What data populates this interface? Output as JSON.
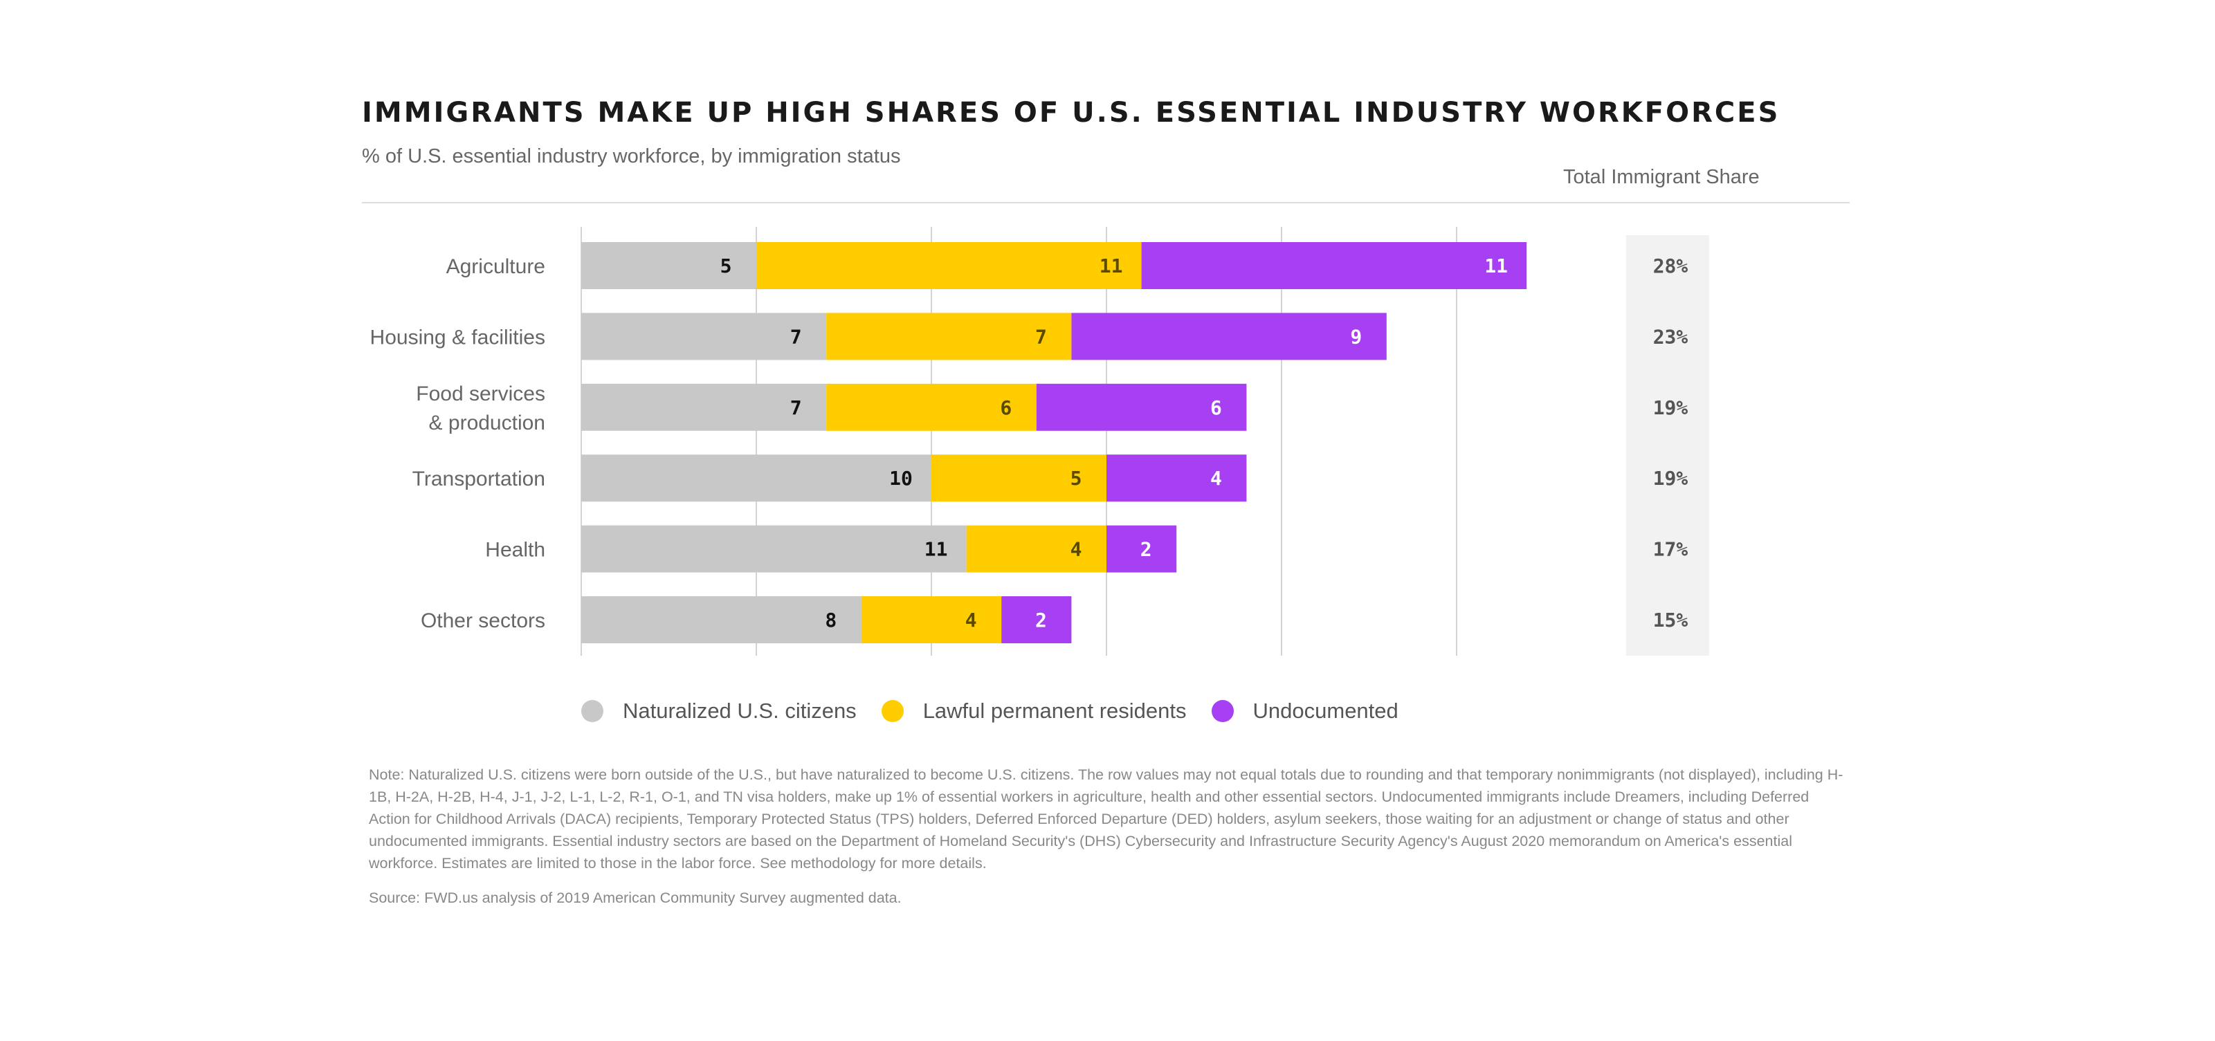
{
  "chart_data": {
    "type": "bar",
    "stacked": true,
    "orientation": "horizontal",
    "title": "IMMIGRANTS MAKE UP HIGH SHARES OF U.S. ESSENTIAL INDUSTRY WORKFORCES",
    "subtitle": "% of U.S. essential industry workforce, by immigration status",
    "categories": [
      [
        "Agriculture"
      ],
      [
        "Housing & facilities"
      ],
      [
        "Food services",
        "& production"
      ],
      [
        "Transportation"
      ],
      [
        "Health"
      ],
      [
        "Other sectors"
      ]
    ],
    "series": [
      {
        "name": "Naturalized U.S. citizens",
        "color": "#c8c8c8",
        "label_color": "#111111",
        "values": [
          5,
          7,
          7,
          10,
          11,
          8
        ]
      },
      {
        "name": "Lawful permanent residents",
        "color": "#ffcc00",
        "label_color": "#5a4a00",
        "values": [
          11,
          7,
          6,
          5,
          4,
          4
        ]
      },
      {
        "name": "Undocumented",
        "color": "#a73ff2",
        "label_color": "#ffffff",
        "values": [
          11,
          9,
          6,
          4,
          2,
          2
        ]
      }
    ],
    "xlim": [
      0,
      35
    ],
    "gridlines": [
      0,
      5,
      10,
      15,
      20,
      25
    ],
    "grid": true,
    "legend_position": "bottom",
    "total_share_header": "Total Immigrant Share",
    "total_share": [
      "28%",
      "23%",
      "19%",
      "19%",
      "17%",
      "15%"
    ]
  },
  "note": "Note: Naturalized U.S. citizens were born outside of the U.S., but have naturalized to become U.S. citizens. The row values may not equal totals due to rounding and that temporary nonimmigrants (not displayed), including H-1B, H-2A, H-2B, H-4, J-1, J-2, L-1, L-2, R-1, O-1, and TN visa holders, make up 1% of essential workers in agriculture, health and other essential sectors. Undocumented immigrants include Dreamers, including Deferred Action for Childhood Arrivals (DACA) recipients, Temporary Protected Status (TPS) holders, Deferred Enforced Departure (DED) holders, asylum seekers, those waiting for an adjustment  or change of status  and other undocumented immigrants. Essential industry sectors are based on the Department of Homeland Security's (DHS) Cybersecurity and Infrastructure Security Agency's August 2020 memorandum on America's essential workforce. Estimates are limited to those in the labor force. See methodology for more details.",
  "source": "Source: FWD.us analysis of 2019 American Community Survey augmented data."
}
